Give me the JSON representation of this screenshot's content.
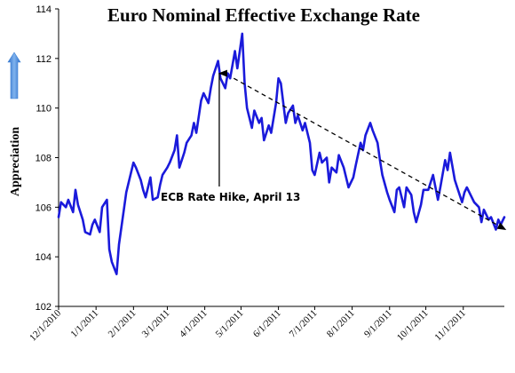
{
  "chart_data": {
    "type": "line",
    "title": "Euro Nominal Effective Exchange Rate",
    "ylabel": "Appreciation",
    "xlabel": "",
    "ylim": [
      102,
      114
    ],
    "yticks": [
      "102",
      "104",
      "106",
      "108",
      "110",
      "112",
      "114"
    ],
    "x_tick_labels": [
      "12/1/2010",
      "1/1/2011",
      "2/1/2011",
      "3/1/2011",
      "4/1/2011",
      "5/1/2011",
      "6/1/2011",
      "7/1/2011",
      "8/1/2011",
      "9/1/2011",
      "10/1/2011",
      "11/1/2011"
    ],
    "x_range": [
      "2010-12-01",
      "2011-12-05"
    ],
    "grid": false,
    "legend": "none",
    "series": [
      {
        "color": "#1a1adb",
        "x": [
          "2010-12-01",
          "2010-12-03",
          "2010-12-07",
          "2010-12-09",
          "2010-12-13",
          "2010-12-15",
          "2010-12-17",
          "2010-12-21",
          "2010-12-23",
          "2010-12-27",
          "2010-12-29",
          "2010-12-31",
          "2011-01-04",
          "2011-01-06",
          "2011-01-10",
          "2011-01-12",
          "2011-01-14",
          "2011-01-18",
          "2011-01-20",
          "2011-01-24",
          "2011-01-26",
          "2011-01-28",
          "2011-02-01",
          "2011-02-03",
          "2011-02-07",
          "2011-02-09",
          "2011-02-11",
          "2011-02-15",
          "2011-02-17",
          "2011-02-21",
          "2011-02-23",
          "2011-02-25",
          "2011-03-01",
          "2011-03-03",
          "2011-03-07",
          "2011-03-09",
          "2011-03-11",
          "2011-03-15",
          "2011-03-17",
          "2011-03-21",
          "2011-03-23",
          "2011-03-25",
          "2011-03-29",
          "2011-03-31",
          "2011-04-04",
          "2011-04-06",
          "2011-04-08",
          "2011-04-12",
          "2011-04-14",
          "2011-04-18",
          "2011-04-20",
          "2011-04-22",
          "2011-04-26",
          "2011-04-28",
          "2011-05-02",
          "2011-05-04",
          "2011-05-06",
          "2011-05-10",
          "2011-05-12",
          "2011-05-16",
          "2011-05-18",
          "2011-05-20",
          "2011-05-24",
          "2011-05-26",
          "2011-05-30",
          "2011-06-01",
          "2011-06-03",
          "2011-06-07",
          "2011-06-09",
          "2011-06-13",
          "2011-06-15",
          "2011-06-17",
          "2011-06-21",
          "2011-06-23",
          "2011-06-27",
          "2011-06-29",
          "2011-07-01",
          "2011-07-05",
          "2011-07-07",
          "2011-07-11",
          "2011-07-13",
          "2011-07-15",
          "2011-07-19",
          "2011-07-21",
          "2011-07-25",
          "2011-07-27",
          "2011-07-29",
          "2011-08-02",
          "2011-08-04",
          "2011-08-08",
          "2011-08-10",
          "2011-08-12",
          "2011-08-16",
          "2011-08-18",
          "2011-08-22",
          "2011-08-24",
          "2011-08-26",
          "2011-08-30",
          "2011-09-01",
          "2011-09-05",
          "2011-09-07",
          "2011-09-09",
          "2011-09-13",
          "2011-09-15",
          "2011-09-19",
          "2011-09-21",
          "2011-09-23",
          "2011-09-27",
          "2011-09-29",
          "2011-10-03",
          "2011-10-05",
          "2011-10-07",
          "2011-10-11",
          "2011-10-13",
          "2011-10-17",
          "2011-10-19",
          "2011-10-21",
          "2011-10-25",
          "2011-10-27",
          "2011-10-31",
          "2011-11-02",
          "2011-11-04",
          "2011-11-08",
          "2011-11-10",
          "2011-11-14",
          "2011-11-16",
          "2011-11-18",
          "2011-11-22",
          "2011-11-24",
          "2011-11-28",
          "2011-11-30",
          "2011-12-02",
          "2011-12-05"
        ],
        "y": [
          105.6,
          106.2,
          106.0,
          106.3,
          105.8,
          106.7,
          106.1,
          105.5,
          105.0,
          104.9,
          105.3,
          105.5,
          105.0,
          106.0,
          106.3,
          104.3,
          103.8,
          103.3,
          104.5,
          105.9,
          106.6,
          107.0,
          107.8,
          107.6,
          107.1,
          106.7,
          106.4,
          107.2,
          106.3,
          106.4,
          106.9,
          107.3,
          107.6,
          107.8,
          108.3,
          108.9,
          107.6,
          108.2,
          108.6,
          108.9,
          109.4,
          109.0,
          110.3,
          110.6,
          110.2,
          110.8,
          111.3,
          111.9,
          111.2,
          110.8,
          111.4,
          111.2,
          112.3,
          111.6,
          113.0,
          111.0,
          110.0,
          109.2,
          109.9,
          109.4,
          109.6,
          108.7,
          109.3,
          109.0,
          110.2,
          111.2,
          111.0,
          109.4,
          109.8,
          110.1,
          109.4,
          109.7,
          109.1,
          109.4,
          108.6,
          107.5,
          107.3,
          108.2,
          107.8,
          108.0,
          107.0,
          107.6,
          107.4,
          108.1,
          107.6,
          107.2,
          106.8,
          107.2,
          107.7,
          108.6,
          108.3,
          108.9,
          109.4,
          109.1,
          108.6,
          107.9,
          107.3,
          106.6,
          106.3,
          105.8,
          106.7,
          106.8,
          106.0,
          106.8,
          106.5,
          105.8,
          105.4,
          106.1,
          106.7,
          106.7,
          107.0,
          107.3,
          106.3,
          106.8,
          107.9,
          107.5,
          108.2,
          107.1,
          106.8,
          106.2,
          106.6,
          106.8,
          106.4,
          106.2,
          106.0,
          105.4,
          105.9,
          105.5,
          105.6,
          105.1,
          105.5,
          105.3,
          105.6
        ]
      }
    ],
    "annotations": [
      {
        "text": "ECB Rate Hike, April 13",
        "point": {
          "x": "2011-04-13",
          "y": 111.4
        }
      }
    ],
    "trendline": {
      "style": "dashed",
      "arrow": true,
      "start": {
        "x": "2011-04-25",
        "y": 111.2
      },
      "end": {
        "x": "2011-12-06",
        "y": 105.1
      }
    },
    "y_direction_arrow": {
      "color": "#3a7fd5"
    }
  }
}
